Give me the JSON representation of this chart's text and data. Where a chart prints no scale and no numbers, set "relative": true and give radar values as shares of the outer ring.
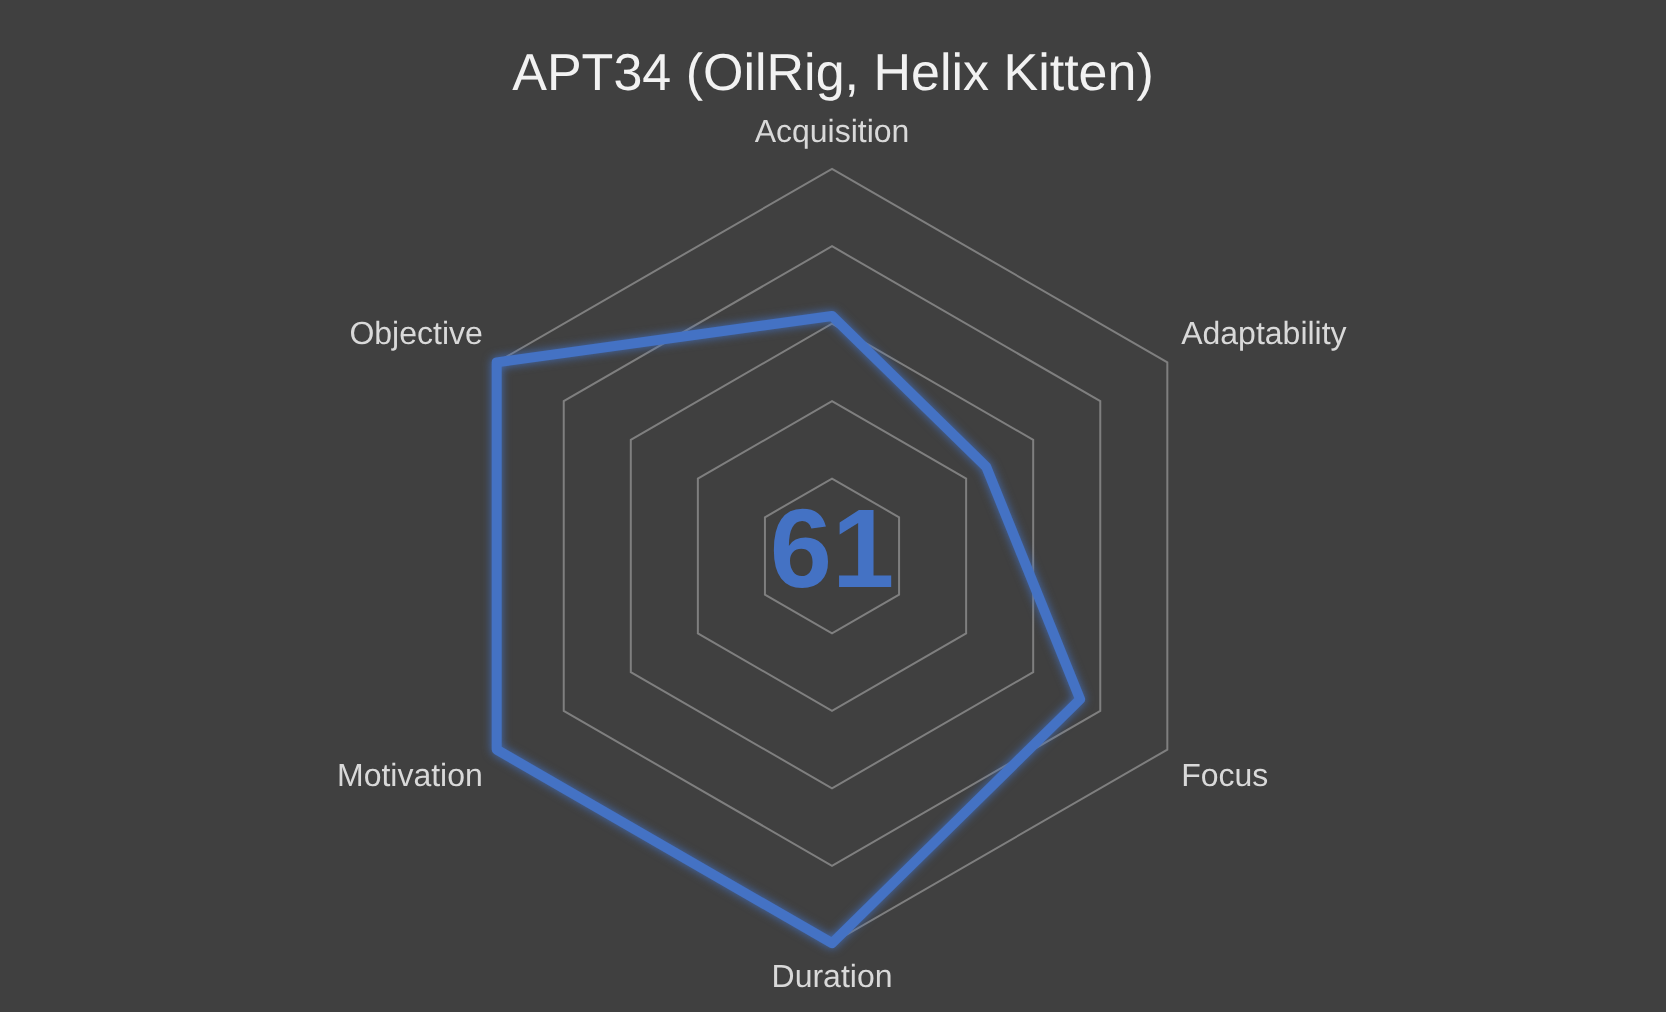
{
  "chart_data": {
    "type": "radar",
    "title": "APT34 (OilRig, Helix Kitten)",
    "categories": [
      "Acquisition",
      "Adaptability",
      "Focus",
      "Duration",
      "Motivation",
      "Objective"
    ],
    "series": [
      {
        "color": "#4472c4",
        "values": [
          0.62,
          0.46,
          0.74,
          1,
          1,
          1
        ]
      }
    ],
    "relative": true,
    "annotations": [
      "61"
    ],
    "legend": false,
    "marker": "none"
  }
}
